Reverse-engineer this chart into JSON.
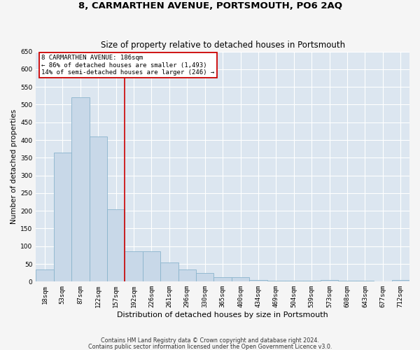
{
  "title": "8, CARMARTHEN AVENUE, PORTSMOUTH, PO6 2AQ",
  "subtitle": "Size of property relative to detached houses in Portsmouth",
  "xlabel": "Distribution of detached houses by size in Portsmouth",
  "ylabel": "Number of detached properties",
  "categories": [
    "18sqm",
    "53sqm",
    "87sqm",
    "122sqm",
    "157sqm",
    "192sqm",
    "226sqm",
    "261sqm",
    "296sqm",
    "330sqm",
    "365sqm",
    "400sqm",
    "434sqm",
    "469sqm",
    "504sqm",
    "539sqm",
    "573sqm",
    "608sqm",
    "643sqm",
    "677sqm",
    "712sqm"
  ],
  "values": [
    35,
    365,
    520,
    410,
    205,
    85,
    85,
    55,
    35,
    25,
    12,
    12,
    5,
    2,
    2,
    2,
    5,
    2,
    2,
    0,
    5
  ],
  "bar_color": "#c8d8e8",
  "bar_edge_color": "#8ab4cc",
  "background_color": "#dce6f0",
  "grid_color": "#ffffff",
  "vline_color": "#cc0000",
  "vline_pos": 4.5,
  "annotation_text": "8 CARMARTHEN AVENUE: 186sqm\n← 86% of detached houses are smaller (1,493)\n14% of semi-detached houses are larger (246) →",
  "annotation_box_color": "#ffffff",
  "annotation_box_edge": "#cc0000",
  "ylim": [
    0,
    650
  ],
  "yticks": [
    0,
    50,
    100,
    150,
    200,
    250,
    300,
    350,
    400,
    450,
    500,
    550,
    600,
    650
  ],
  "fig_bg": "#f5f5f5",
  "footer1": "Contains HM Land Registry data © Crown copyright and database right 2024.",
  "footer2": "Contains public sector information licensed under the Open Government Licence v3.0.",
  "title_fontsize": 9.5,
  "subtitle_fontsize": 8.5,
  "xlabel_fontsize": 8,
  "ylabel_fontsize": 7.5,
  "tick_fontsize": 6.5,
  "annotation_fontsize": 6.5,
  "footer_fontsize": 5.8
}
